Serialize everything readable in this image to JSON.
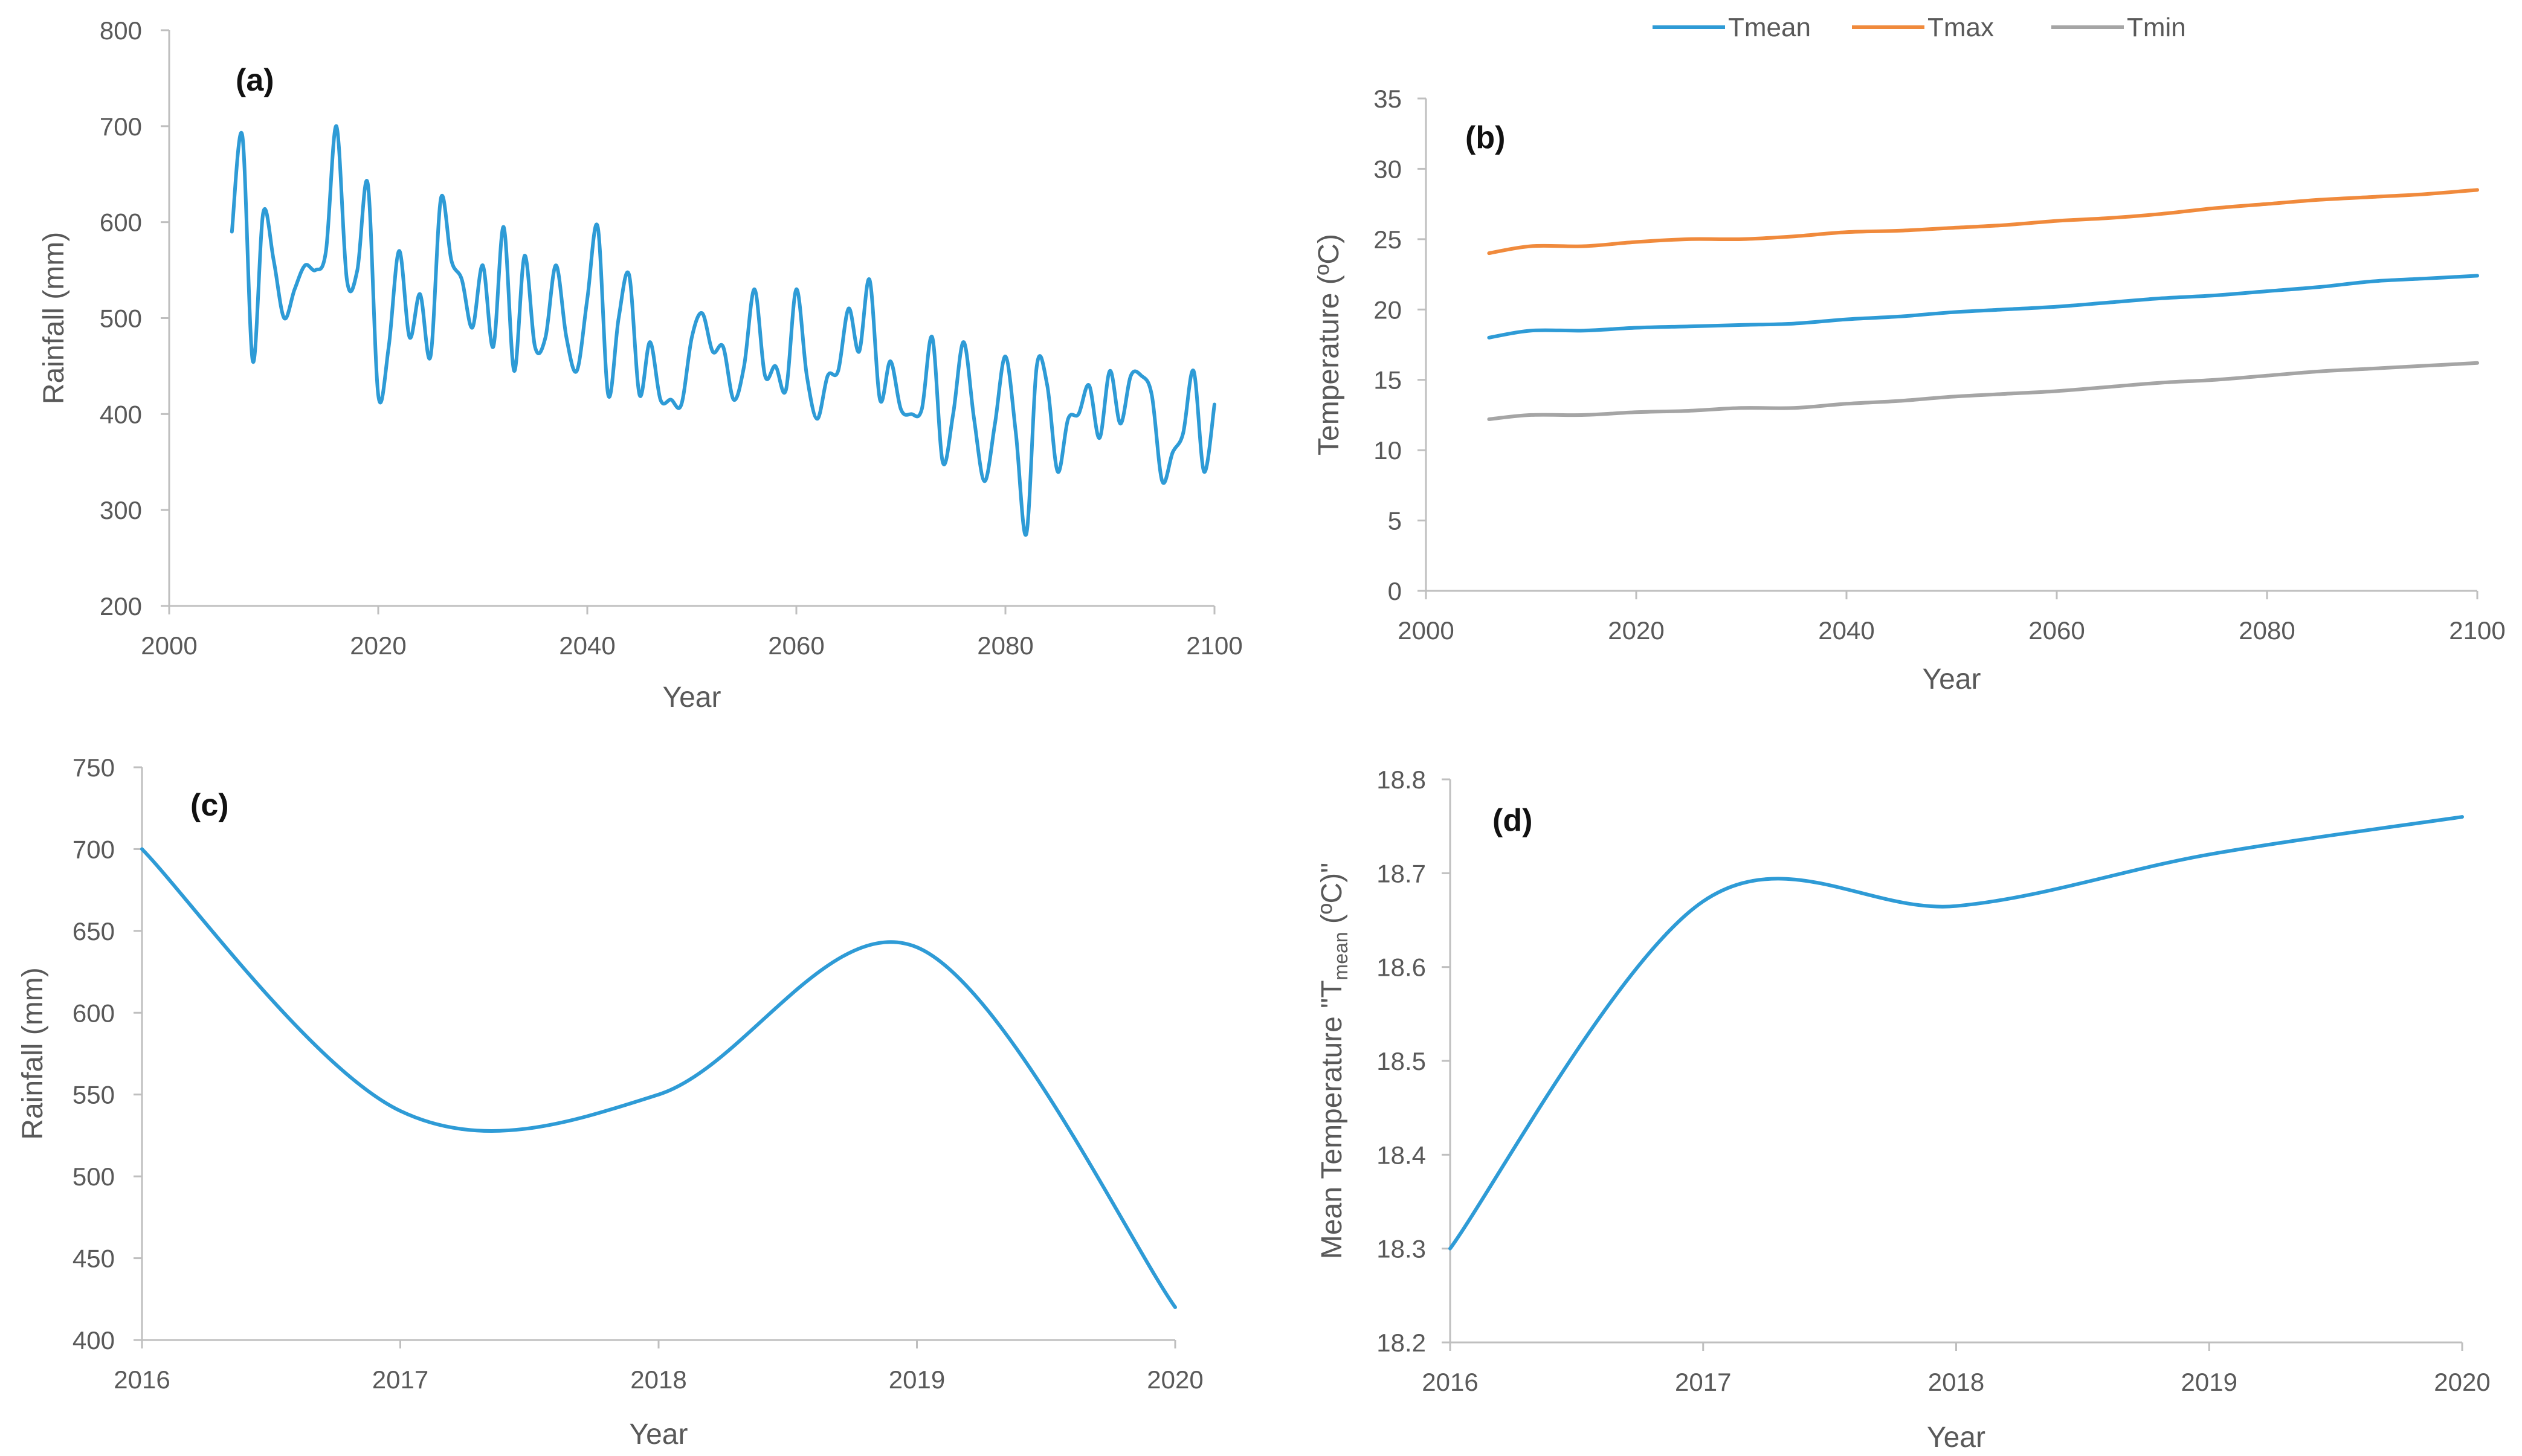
{
  "chart_data": [
    {
      "panel": "(a)",
      "type": "line",
      "xlabel": "Year",
      "ylabel": "Rainfall (mm)",
      "xlim": [
        2000,
        2100
      ],
      "ylim": [
        200,
        800
      ],
      "xticks": [
        "2000",
        "2020",
        "2040",
        "2060",
        "2080",
        "2100"
      ],
      "yticks": [
        "200",
        "300",
        "400",
        "500",
        "600",
        "700",
        "800"
      ],
      "series": [
        {
          "color": "#2e9bd6",
          "x": [
            2006,
            2007,
            2008,
            2009,
            2010,
            2011,
            2012,
            2013,
            2014,
            2015,
            2016,
            2017,
            2018,
            2019,
            2020,
            2021,
            2022,
            2023,
            2024,
            2025,
            2026,
            2027,
            2028,
            2029,
            2030,
            2031,
            2032,
            2033,
            2034,
            2035,
            2036,
            2037,
            2038,
            2039,
            2040,
            2041,
            2042,
            2043,
            2044,
            2045,
            2046,
            2047,
            2048,
            2049,
            2050,
            2051,
            2052,
            2053,
            2054,
            2055,
            2056,
            2057,
            2058,
            2059,
            2060,
            2061,
            2062,
            2063,
            2064,
            2065,
            2066,
            2067,
            2068,
            2069,
            2070,
            2071,
            2072,
            2073,
            2074,
            2075,
            2076,
            2077,
            2078,
            2079,
            2080,
            2081,
            2082,
            2083,
            2084,
            2085,
            2086,
            2087,
            2088,
            2089,
            2090,
            2091,
            2092,
            2093,
            2094,
            2095,
            2096,
            2097,
            2098,
            2099,
            2100
          ],
          "y": [
            590,
            690,
            455,
            610,
            560,
            500,
            530,
            555,
            550,
            570,
            700,
            540,
            550,
            640,
            420,
            470,
            570,
            480,
            525,
            460,
            625,
            560,
            540,
            490,
            555,
            470,
            595,
            445,
            565,
            470,
            480,
            555,
            480,
            445,
            520,
            595,
            420,
            500,
            545,
            420,
            475,
            415,
            415,
            410,
            480,
            505,
            465,
            470,
            415,
            450,
            530,
            440,
            450,
            425,
            530,
            440,
            395,
            440,
            445,
            510,
            465,
            540,
            415,
            455,
            405,
            400,
            405,
            480,
            350,
            400,
            475,
            395,
            330,
            390,
            460,
            380,
            275,
            450,
            430,
            340,
            395,
            400,
            430,
            375,
            445,
            390,
            440,
            440,
            420,
            330,
            360,
            380,
            445,
            340,
            410
          ]
        }
      ]
    },
    {
      "panel": "(b)",
      "type": "line",
      "xlabel": "Year",
      "ylabel": "Temperature (ºC)",
      "xlim": [
        2000,
        2100
      ],
      "ylim": [
        0,
        35
      ],
      "xticks": [
        "2000",
        "2020",
        "2040",
        "2060",
        "2080",
        "2100"
      ],
      "yticks": [
        "0",
        "5",
        "10",
        "15",
        "20",
        "25",
        "30",
        "35"
      ],
      "legend": "top",
      "series": [
        {
          "name": "Tmean",
          "color": "#2e9bd6",
          "x": [
            2006,
            2010,
            2015,
            2020,
            2025,
            2030,
            2035,
            2040,
            2045,
            2050,
            2055,
            2060,
            2065,
            2070,
            2075,
            2080,
            2085,
            2090,
            2095,
            2100
          ],
          "y": [
            18.0,
            18.5,
            18.5,
            18.7,
            18.8,
            18.9,
            19.0,
            19.3,
            19.5,
            19.8,
            20.0,
            20.2,
            20.5,
            20.8,
            21.0,
            21.3,
            21.6,
            22.0,
            22.2,
            22.4
          ]
        },
        {
          "name": "Tmax",
          "color": "#f08a3c",
          "x": [
            2006,
            2010,
            2015,
            2020,
            2025,
            2030,
            2035,
            2040,
            2045,
            2050,
            2055,
            2060,
            2065,
            2070,
            2075,
            2080,
            2085,
            2090,
            2095,
            2100
          ],
          "y": [
            24.0,
            24.5,
            24.5,
            24.8,
            25.0,
            25.0,
            25.2,
            25.5,
            25.6,
            25.8,
            26.0,
            26.3,
            26.5,
            26.8,
            27.2,
            27.5,
            27.8,
            28.0,
            28.2,
            28.5
          ]
        },
        {
          "name": "Tmin",
          "color": "#a5a5a5",
          "x": [
            2006,
            2010,
            2015,
            2020,
            2025,
            2030,
            2035,
            2040,
            2045,
            2050,
            2055,
            2060,
            2065,
            2070,
            2075,
            2080,
            2085,
            2090,
            2095,
            2100
          ],
          "y": [
            12.2,
            12.5,
            12.5,
            12.7,
            12.8,
            13.0,
            13.0,
            13.3,
            13.5,
            13.8,
            14.0,
            14.2,
            14.5,
            14.8,
            15.0,
            15.3,
            15.6,
            15.8,
            16.0,
            16.2
          ]
        }
      ]
    },
    {
      "panel": "(c)",
      "type": "line",
      "xlabel": "Year",
      "ylabel": "Rainfall (mm)",
      "xlim": [
        2016,
        2020
      ],
      "ylim": [
        400,
        750
      ],
      "xticks": [
        "2016",
        "2017",
        "2018",
        "2019",
        "2020"
      ],
      "yticks": [
        "400",
        "450",
        "500",
        "550",
        "600",
        "650",
        "700",
        "750"
      ],
      "series": [
        {
          "color": "#2e9bd6",
          "x": [
            2016,
            2017,
            2018,
            2019,
            2020
          ],
          "y": [
            700,
            540,
            550,
            640,
            420
          ]
        }
      ]
    },
    {
      "panel": "(d)",
      "type": "line",
      "xlabel": "Year",
      "ylabel_parts": [
        "Mean Temperature \"T",
        "mean",
        " (ºC)\""
      ],
      "xlim": [
        2016,
        2020
      ],
      "ylim": [
        18.2,
        18.8
      ],
      "xticks": [
        "2016",
        "2017",
        "2018",
        "2019",
        "2020"
      ],
      "yticks": [
        "18.2",
        "18.3",
        "18.4",
        "18.5",
        "18.6",
        "18.7",
        "18.8"
      ],
      "series": [
        {
          "color": "#2e9bd6",
          "x": [
            2016,
            2017,
            2018,
            2019,
            2020
          ],
          "y": [
            18.3,
            18.67,
            18.665,
            18.72,
            18.76
          ]
        }
      ]
    }
  ]
}
